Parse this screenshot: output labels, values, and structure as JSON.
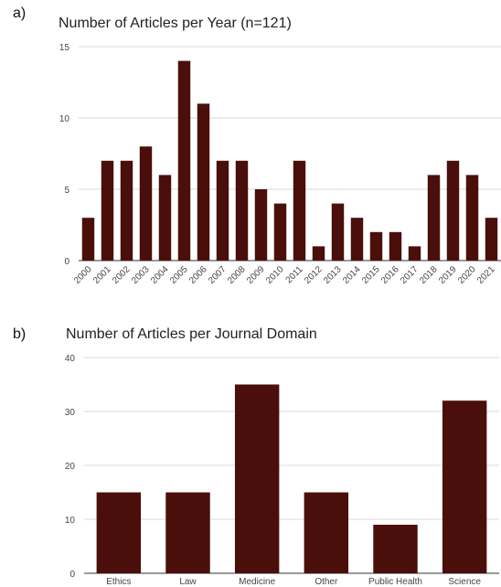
{
  "chart_data": [
    {
      "panel_label": "a)",
      "type": "bar",
      "title": "Number of Articles per Year (n=121)",
      "xlabel": "",
      "ylabel": "",
      "categories": [
        "2000",
        "2001",
        "2002",
        "2003",
        "2004",
        "2005",
        "2006",
        "2007",
        "2008",
        "2009",
        "2010",
        "2011",
        "2012",
        "2013",
        "2014",
        "2015",
        "2016",
        "2017",
        "2018",
        "2019",
        "2020",
        "2021"
      ],
      "values": [
        3,
        7,
        7,
        8,
        6,
        14,
        11,
        7,
        7,
        5,
        4,
        7,
        1,
        4,
        3,
        2,
        2,
        1,
        6,
        7,
        6,
        3
      ],
      "ylim": [
        0,
        15
      ],
      "yticks": [
        0,
        5,
        10,
        15
      ],
      "grid": true,
      "bar_color": "#4a0f0a"
    },
    {
      "panel_label": "b)",
      "type": "bar",
      "title": "Number of Articles per Journal Domain",
      "xlabel": "",
      "ylabel": "",
      "categories": [
        "Ethics",
        "Law",
        "Medicine",
        "Other",
        "Public Health",
        "Science"
      ],
      "values": [
        15,
        15,
        35,
        15,
        9,
        32
      ],
      "ylim": [
        0,
        40
      ],
      "yticks": [
        0,
        10,
        20,
        30,
        40
      ],
      "grid": true,
      "bar_color": "#4a0f0a"
    }
  ]
}
